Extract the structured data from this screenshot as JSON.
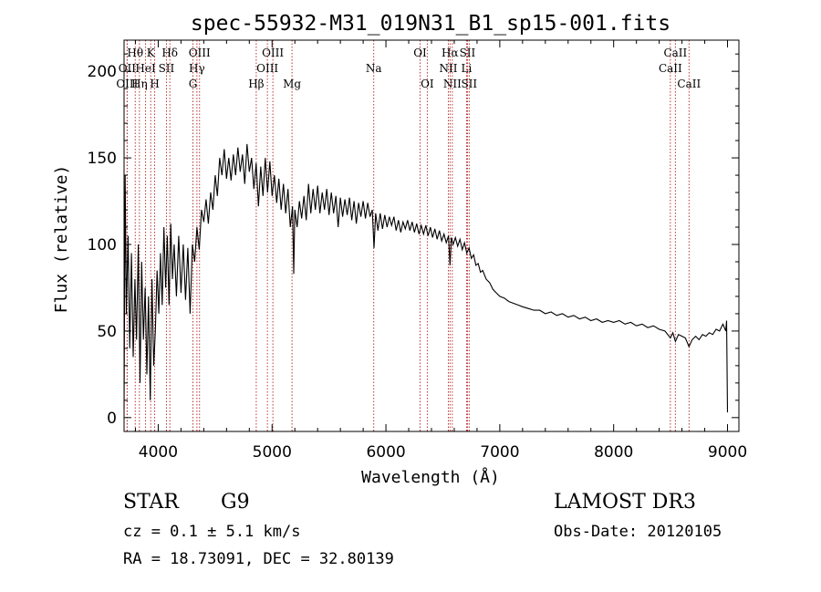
{
  "chart_data": {
    "type": "line",
    "title": "spec-55932-M31_019N31_B1_sp15-001.fits",
    "xlabel": "Wavelength (Å)",
    "ylabel": "Flux (relative)",
    "xlim": [
      3700,
      9100
    ],
    "ylim": [
      -8,
      218
    ],
    "x_ticks": [
      4000,
      5000,
      6000,
      7000,
      8000,
      9000
    ],
    "y_ticks": [
      0,
      50,
      100,
      150,
      200
    ],
    "grid": false,
    "series": [
      {
        "name": "flux",
        "points": [
          [
            3700,
            5
          ],
          [
            3710,
            140
          ],
          [
            3720,
            60
          ],
          [
            3735,
            105
          ],
          [
            3750,
            40
          ],
          [
            3765,
            95
          ],
          [
            3780,
            35
          ],
          [
            3795,
            80
          ],
          [
            3810,
            45
          ],
          [
            3825,
            100
          ],
          [
            3840,
            20
          ],
          [
            3855,
            90
          ],
          [
            3870,
            45
          ],
          [
            3885,
            75
          ],
          [
            3900,
            25
          ],
          [
            3915,
            70
          ],
          [
            3930,
            10
          ],
          [
            3945,
            80
          ],
          [
            3960,
            30
          ],
          [
            3975,
            50
          ],
          [
            3990,
            85
          ],
          [
            4005,
            60
          ],
          [
            4020,
            95
          ],
          [
            4035,
            65
          ],
          [
            4050,
            110
          ],
          [
            4065,
            75
          ],
          [
            4080,
            105
          ],
          [
            4095,
            65
          ],
          [
            4110,
            112
          ],
          [
            4125,
            80
          ],
          [
            4140,
            100
          ],
          [
            4160,
            70
          ],
          [
            4180,
            105
          ],
          [
            4200,
            72
          ],
          [
            4220,
            100
          ],
          [
            4240,
            68
          ],
          [
            4260,
            98
          ],
          [
            4280,
            60
          ],
          [
            4300,
            100
          ],
          [
            4320,
            90
          ],
          [
            4340,
            110
          ],
          [
            4360,
            97
          ],
          [
            4380,
            120
          ],
          [
            4400,
            113
          ],
          [
            4420,
            126
          ],
          [
            4440,
            112
          ],
          [
            4460,
            130
          ],
          [
            4480,
            120
          ],
          [
            4500,
            140
          ],
          [
            4520,
            128
          ],
          [
            4540,
            150
          ],
          [
            4560,
            140
          ],
          [
            4580,
            155
          ],
          [
            4600,
            138
          ],
          [
            4620,
            150
          ],
          [
            4640,
            137
          ],
          [
            4660,
            152
          ],
          [
            4680,
            140
          ],
          [
            4700,
            156
          ],
          [
            4720,
            142
          ],
          [
            4740,
            152
          ],
          [
            4760,
            135
          ],
          [
            4780,
            158
          ],
          [
            4800,
            142
          ],
          [
            4820,
            150
          ],
          [
            4840,
            132
          ],
          [
            4860,
            147
          ],
          [
            4880,
            122
          ],
          [
            4900,
            145
          ],
          [
            4920,
            128
          ],
          [
            4940,
            150
          ],
          [
            4960,
            130
          ],
          [
            4980,
            148
          ],
          [
            5000,
            128
          ],
          [
            5020,
            140
          ],
          [
            5040,
            124
          ],
          [
            5060,
            138
          ],
          [
            5080,
            120
          ],
          [
            5100,
            135
          ],
          [
            5120,
            118
          ],
          [
            5140,
            132
          ],
          [
            5160,
            110
          ],
          [
            5180,
            122
          ],
          [
            5190,
            83
          ],
          [
            5200,
            120
          ],
          [
            5220,
            110
          ],
          [
            5240,
            125
          ],
          [
            5260,
            115
          ],
          [
            5280,
            128
          ],
          [
            5300,
            114
          ],
          [
            5320,
            135
          ],
          [
            5340,
            118
          ],
          [
            5360,
            132
          ],
          [
            5380,
            120
          ],
          [
            5400,
            134
          ],
          [
            5420,
            118
          ],
          [
            5440,
            130
          ],
          [
            5460,
            120
          ],
          [
            5480,
            132
          ],
          [
            5500,
            117
          ],
          [
            5520,
            130
          ],
          [
            5540,
            118
          ],
          [
            5560,
            128
          ],
          [
            5580,
            110
          ],
          [
            5600,
            127
          ],
          [
            5620,
            116
          ],
          [
            5640,
            126
          ],
          [
            5660,
            117
          ],
          [
            5680,
            127
          ],
          [
            5700,
            114
          ],
          [
            5720,
            125
          ],
          [
            5740,
            112
          ],
          [
            5760,
            124
          ],
          [
            5780,
            116
          ],
          [
            5800,
            125
          ],
          [
            5820,
            115
          ],
          [
            5840,
            124
          ],
          [
            5860,
            116
          ],
          [
            5880,
            120
          ],
          [
            5895,
            98
          ],
          [
            5910,
            118
          ],
          [
            5930,
            108
          ],
          [
            5950,
            118
          ],
          [
            5970,
            109
          ],
          [
            5990,
            117
          ],
          [
            6010,
            110
          ],
          [
            6030,
            116
          ],
          [
            6050,
            111
          ],
          [
            6070,
            116
          ],
          [
            6090,
            108
          ],
          [
            6110,
            114
          ],
          [
            6130,
            107
          ],
          [
            6150,
            113
          ],
          [
            6170,
            109
          ],
          [
            6190,
            114
          ],
          [
            6210,
            108
          ],
          [
            6230,
            113
          ],
          [
            6250,
            107
          ],
          [
            6270,
            112
          ],
          [
            6290,
            106
          ],
          [
            6310,
            111
          ],
          [
            6330,
            106
          ],
          [
            6350,
            111
          ],
          [
            6370,
            105
          ],
          [
            6390,
            110
          ],
          [
            6410,
            104
          ],
          [
            6430,
            109
          ],
          [
            6450,
            103
          ],
          [
            6470,
            108
          ],
          [
            6490,
            102
          ],
          [
            6510,
            106
          ],
          [
            6530,
            101
          ],
          [
            6550,
            105
          ],
          [
            6563,
            88
          ],
          [
            6575,
            104
          ],
          [
            6590,
            100
          ],
          [
            6610,
            104
          ],
          [
            6630,
            99
          ],
          [
            6650,
            103
          ],
          [
            6670,
            97
          ],
          [
            6690,
            101
          ],
          [
            6710,
            95
          ],
          [
            6730,
            98
          ],
          [
            6750,
            92
          ],
          [
            6770,
            94
          ],
          [
            6790,
            88
          ],
          [
            6810,
            89
          ],
          [
            6830,
            84
          ],
          [
            6850,
            85
          ],
          [
            6880,
            80
          ],
          [
            6910,
            78
          ],
          [
            6940,
            74
          ],
          [
            6970,
            72
          ],
          [
            7000,
            70
          ],
          [
            7040,
            69
          ],
          [
            7080,
            67
          ],
          [
            7120,
            66
          ],
          [
            7160,
            65
          ],
          [
            7200,
            64
          ],
          [
            7250,
            63
          ],
          [
            7300,
            62
          ],
          [
            7350,
            62
          ],
          [
            7400,
            60
          ],
          [
            7450,
            61
          ],
          [
            7500,
            59
          ],
          [
            7550,
            60
          ],
          [
            7600,
            58
          ],
          [
            7650,
            59
          ],
          [
            7700,
            57
          ],
          [
            7750,
            58
          ],
          [
            7800,
            56
          ],
          [
            7850,
            57
          ],
          [
            7900,
            55
          ],
          [
            7950,
            56
          ],
          [
            8000,
            55
          ],
          [
            8050,
            56
          ],
          [
            8100,
            54
          ],
          [
            8150,
            55
          ],
          [
            8200,
            53
          ],
          [
            8250,
            54
          ],
          [
            8300,
            52
          ],
          [
            8350,
            53
          ],
          [
            8400,
            51
          ],
          [
            8450,
            50
          ],
          [
            8498,
            46
          ],
          [
            8520,
            49
          ],
          [
            8542,
            44
          ],
          [
            8570,
            48
          ],
          [
            8600,
            47
          ],
          [
            8630,
            46
          ],
          [
            8662,
            41
          ],
          [
            8690,
            45
          ],
          [
            8720,
            47
          ],
          [
            8750,
            45
          ],
          [
            8780,
            48
          ],
          [
            8810,
            47
          ],
          [
            8840,
            49
          ],
          [
            8870,
            48
          ],
          [
            8900,
            51
          ],
          [
            8930,
            50
          ],
          [
            8960,
            54
          ],
          [
            8985,
            50
          ],
          [
            8992,
            56
          ],
          [
            9000,
            3
          ]
        ]
      }
    ],
    "lines": [
      {
        "label": "Hθ",
        "x": 3798,
        "row": 0
      },
      {
        "label": "OII",
        "x": 3727,
        "row": 1
      },
      {
        "label": "OIII",
        "x": 3727,
        "row": 2
      },
      {
        "label": "K",
        "x": 3934,
        "row": 0
      },
      {
        "label": "HeI",
        "x": 3889,
        "row": 1
      },
      {
        "label": "Hη",
        "x": 3835,
        "row": 2
      },
      {
        "label": "SII",
        "x": 4072,
        "row": 1
      },
      {
        "label": "H",
        "x": 3969,
        "row": 2
      },
      {
        "label": "Hδ",
        "x": 4102,
        "row": 0
      },
      {
        "label": "OIII",
        "x": 4363,
        "row": 0
      },
      {
        "label": "Hγ",
        "x": 4340,
        "row": 1
      },
      {
        "label": "G",
        "x": 4305,
        "row": 2
      },
      {
        "label": "OIII",
        "x": 5007,
        "row": 0
      },
      {
        "label": "OIII",
        "x": 4959,
        "row": 1
      },
      {
        "label": "Hβ",
        "x": 4861,
        "row": 2
      },
      {
        "label": "Mg",
        "x": 5175,
        "row": 2
      },
      {
        "label": "Na",
        "x": 5893,
        "row": 1
      },
      {
        "label": "OI",
        "x": 6300,
        "row": 0
      },
      {
        "label": "OI",
        "x": 6363,
        "row": 2
      },
      {
        "label": "Hα",
        "x": 6563,
        "row": 0
      },
      {
        "label": "NII",
        "x": 6548,
        "row": 1
      },
      {
        "label": "NII",
        "x": 6583,
        "row": 2
      },
      {
        "label": "SII",
        "x": 6716,
        "row": 0
      },
      {
        "label": "Li",
        "x": 6708,
        "row": 1
      },
      {
        "label": "SII",
        "x": 6731,
        "row": 2
      },
      {
        "label": "CaII",
        "x": 8542,
        "row": 0
      },
      {
        "label": "CaII",
        "x": 8498,
        "row": 1
      },
      {
        "label": "CaII",
        "x": 8662,
        "row": 2
      }
    ]
  },
  "footer": {
    "object_class": "STAR",
    "subclass": "G9",
    "survey": "LAMOST DR3",
    "cz": "cz = 0.1 ± 5.1 km/s",
    "obs_date": "Obs-Date: 20120105",
    "coords": "RA =  18.73091, DEC =  32.80139"
  }
}
